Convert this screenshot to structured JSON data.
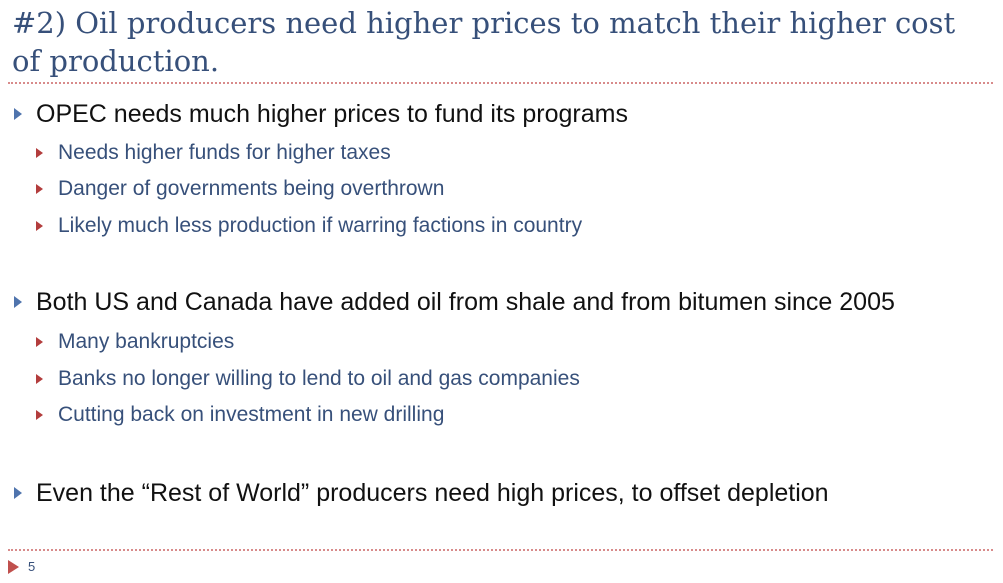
{
  "slide": {
    "title": "#2) Oil producers need higher prices to match their higher cost of production.",
    "page_number": "5",
    "colors": {
      "title": "#37507a",
      "main_text": "#111111",
      "sub_text": "#37507a",
      "level1_bullet": "#4f74ad",
      "level2_bullet": "#b33d3d",
      "divider": "#d88b8b"
    },
    "bullets": [
      {
        "text": "OPEC needs much higher prices to fund its programs",
        "sub": [
          "Needs higher funds for higher taxes",
          "Danger of governments being overthrown",
          "Likely much less production if warring factions in country"
        ]
      },
      {
        "text": "Both US and Canada have added oil from shale and from bitumen since 2005",
        "sub": [
          "Many bankruptcies",
          "Banks no longer willing to lend to oil and gas companies",
          "Cutting back on investment in new drilling"
        ]
      },
      {
        "text": "Even the “Rest of World” producers need high prices, to offset depletion",
        "sub": []
      }
    ]
  }
}
